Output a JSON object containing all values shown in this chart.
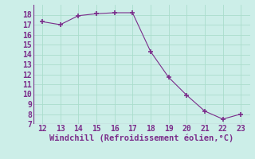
{
  "x": [
    12,
    13,
    14,
    15,
    16,
    17,
    18,
    19,
    20,
    21,
    22,
    23
  ],
  "y": [
    17.3,
    17.0,
    17.9,
    18.1,
    18.2,
    18.2,
    14.3,
    11.7,
    9.9,
    8.3,
    7.5,
    8.0
  ],
  "line_color": "#7b2d8b",
  "marker_color": "#7b2d8b",
  "bg_color": "#cceee8",
  "grid_color": "#aaddcc",
  "xlabel": "Windchill (Refroidissement éolien,°C)",
  "xlabel_color": "#7b2d8b",
  "tick_color": "#7b2d8b",
  "xlim": [
    11.5,
    23.5
  ],
  "ylim": [
    7,
    19
  ],
  "xticks": [
    12,
    13,
    14,
    15,
    16,
    17,
    18,
    19,
    20,
    21,
    22,
    23
  ],
  "yticks": [
    7,
    8,
    9,
    10,
    11,
    12,
    13,
    14,
    15,
    16,
    17,
    18
  ],
  "fontsize": 7.0,
  "xlabel_fontsize": 7.5
}
